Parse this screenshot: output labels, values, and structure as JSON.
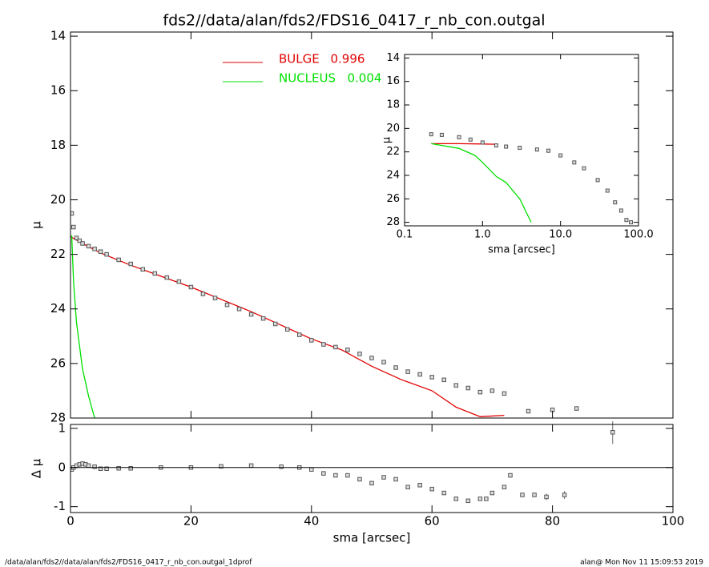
{
  "title": "fds2//data/alan/fds2/FDS16_0417_r_nb_con.outgal",
  "footer_left": "/data/alan/fds2//data/alan/fds2/FDS16_0417_r_nb_con.outgal_1dprof",
  "footer_right": "alan@  Mon Nov 11 15:09:53 2019",
  "chart_data": [
    {
      "type": "line",
      "ylabel": "μ",
      "xlim": [
        0,
        100
      ],
      "xticks": [
        0,
        20,
        40,
        60,
        80,
        100
      ],
      "xtick_labels": false,
      "ylim": [
        28,
        13.85
      ],
      "yticks": [
        14,
        16,
        18,
        20,
        22,
        24,
        26,
        28
      ],
      "series": [
        {
          "name": "BULGE",
          "fraction": 0.996,
          "color": "#e00000",
          "style": "line",
          "x": [
            0,
            2,
            5,
            10,
            15,
            20,
            25,
            30,
            35,
            40,
            45,
            50,
            55,
            60,
            64,
            68,
            72
          ],
          "values": [
            21.35,
            21.6,
            21.95,
            22.4,
            22.8,
            23.2,
            23.65,
            24.1,
            24.6,
            25.1,
            25.5,
            26.1,
            26.6,
            27.0,
            27.6,
            27.95,
            27.9
          ]
        },
        {
          "name": "NUCLEUS",
          "fraction": 0.004,
          "color": "#00e000",
          "style": "line",
          "x": [
            0.2,
            0.5,
            1,
            2,
            3,
            4
          ],
          "values": [
            21.3,
            23,
            24.5,
            26.2,
            27.2,
            28
          ]
        },
        {
          "color": "#555555",
          "style": "square",
          "x": [
            0.2,
            0.5,
            1,
            1.5,
            2,
            3,
            4,
            5,
            6,
            8,
            10,
            12,
            14,
            16,
            18,
            20,
            22,
            24,
            26,
            28,
            30,
            32,
            34,
            36,
            38,
            40,
            42,
            44,
            46,
            48,
            50,
            52,
            54,
            56,
            58,
            60,
            62,
            64,
            66,
            68,
            70,
            72,
            76,
            80,
            84
          ],
          "values": [
            20.5,
            21.0,
            21.4,
            21.5,
            21.6,
            21.7,
            21.8,
            21.9,
            22.0,
            22.2,
            22.35,
            22.55,
            22.7,
            22.85,
            23.0,
            23.2,
            23.45,
            23.6,
            23.85,
            24.0,
            24.2,
            24.35,
            24.55,
            24.75,
            24.95,
            25.15,
            25.3,
            25.4,
            25.5,
            25.65,
            25.8,
            25.95,
            26.15,
            26.3,
            26.4,
            26.5,
            26.6,
            26.8,
            26.9,
            27.05,
            27.0,
            27.1,
            27.75,
            27.7,
            27.65
          ]
        }
      ]
    },
    {
      "type": "errorbar",
      "xlabel": "sma [arcsec]",
      "ylabel": "Δ μ",
      "xlim": [
        0,
        100
      ],
      "xticks": [
        0,
        20,
        40,
        60,
        80,
        100
      ],
      "ylim": [
        -1.15,
        1.1
      ],
      "yticks": [
        -1,
        0,
        1
      ],
      "hline": 0,
      "series": [
        {
          "color": "#555555",
          "style": "square",
          "x": [
            0.2,
            0.5,
            1,
            1.5,
            2,
            2.5,
            3,
            4,
            5,
            6,
            8,
            10,
            15,
            20,
            25,
            30,
            35,
            38,
            40,
            42,
            44,
            46,
            48,
            50,
            52,
            54,
            56,
            58,
            60,
            62,
            64,
            66,
            68,
            69,
            70,
            72,
            73,
            75,
            77,
            79,
            82,
            90
          ],
          "values": [
            -0.05,
            0,
            0.05,
            0.08,
            0.1,
            0.08,
            0.05,
            0.02,
            -0.03,
            -0.03,
            -0.02,
            -0.02,
            0,
            0,
            0.03,
            0.05,
            0.02,
            0,
            -0.05,
            -0.15,
            -0.2,
            -0.2,
            -0.3,
            -0.4,
            -0.25,
            -0.3,
            -0.5,
            -0.45,
            -0.55,
            -0.65,
            -0.8,
            -0.85,
            -0.8,
            -0.8,
            -0.65,
            -0.5,
            -0.2,
            -0.7,
            -0.7,
            -0.75,
            -0.7,
            0.9
          ],
          "errors": [
            0.01,
            0.01,
            0.01,
            0.01,
            0.01,
            0.01,
            0.01,
            0.01,
            0.01,
            0.01,
            0.01,
            0.01,
            0.01,
            0.01,
            0.01,
            0.01,
            0.01,
            0.01,
            0.01,
            0.01,
            0.03,
            0.03,
            0.03,
            0.03,
            0.03,
            0.03,
            0.03,
            0.03,
            0.03,
            0.03,
            0.03,
            0.03,
            0.03,
            0.03,
            0.03,
            0.03,
            0.06,
            0.05,
            0.06,
            0.08,
            0.1,
            0.3
          ]
        }
      ]
    },
    {
      "type": "line",
      "xlabel": "sma [arcsec]",
      "ylabel": "μ",
      "log_x": true,
      "xlim": [
        0.1,
        100
      ],
      "xticks": [
        0.1,
        {
          "value": 1,
          "label": "1.0"
        },
        {
          "value": 10,
          "label": "10.0"
        },
        {
          "value": 100,
          "label": "100.0"
        }
      ],
      "ylim": [
        28.3,
        13.7
      ],
      "yticks": [
        14,
        16,
        18,
        20,
        22,
        24,
        26,
        28
      ],
      "series": [
        {
          "color": "#e00000",
          "style": "line",
          "x": [
            0.22,
            0.5,
            1,
            1.5
          ],
          "values": [
            21.3,
            21.3,
            21.33,
            21.35
          ]
        },
        {
          "color": "#00e000",
          "style": "line",
          "x": [
            0.22,
            0.5,
            0.8,
            1,
            1.5,
            2,
            3,
            4.2
          ],
          "values": [
            21.3,
            21.7,
            22.3,
            22.9,
            24.1,
            24.6,
            26.0,
            28.0
          ]
        },
        {
          "color": "#555555",
          "style": "square",
          "x": [
            0.22,
            0.3,
            0.5,
            0.7,
            1,
            1.5,
            2,
            3,
            5,
            7,
            10,
            15,
            20,
            30,
            40,
            50,
            60,
            70,
            80
          ],
          "values": [
            20.5,
            20.55,
            20.75,
            20.95,
            21.2,
            21.45,
            21.55,
            21.65,
            21.8,
            21.9,
            22.3,
            22.9,
            23.4,
            24.4,
            25.3,
            26.3,
            27.0,
            27.8,
            28.0
          ]
        }
      ]
    }
  ]
}
